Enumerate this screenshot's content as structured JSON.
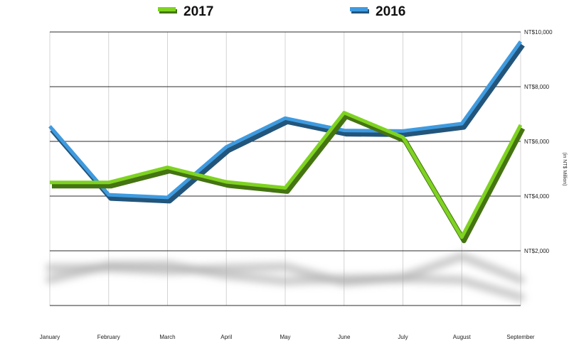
{
  "chart_data": {
    "type": "line",
    "title": "",
    "xlabel": "",
    "ylabel": "(in NT$ Million)",
    "categories": [
      "January",
      "February",
      "March",
      "April",
      "May",
      "June",
      "July",
      "August",
      "September"
    ],
    "series": [
      {
        "name": "2017",
        "color": "#7ed321",
        "values": [
          4500,
          4500,
          5050,
          4520,
          4300,
          7050,
          6150,
          2500,
          6600
        ]
      },
      {
        "name": "2016",
        "color": "#3f9be0",
        "values": [
          6550,
          4050,
          3950,
          5800,
          6850,
          6400,
          6380,
          6650,
          9650
        ]
      }
    ],
    "ylim": [
      0,
      10000
    ],
    "y_ticks": [
      {
        "value": 2000,
        "label": "NT$2,000"
      },
      {
        "value": 4000,
        "label": "NT$4,000"
      },
      {
        "value": 6000,
        "label": "NT$6,000"
      },
      {
        "value": 8000,
        "label": "NT$8,000"
      },
      {
        "value": 10000,
        "label": "NT$10,000"
      }
    ],
    "grid": true,
    "legend_position": "top"
  }
}
